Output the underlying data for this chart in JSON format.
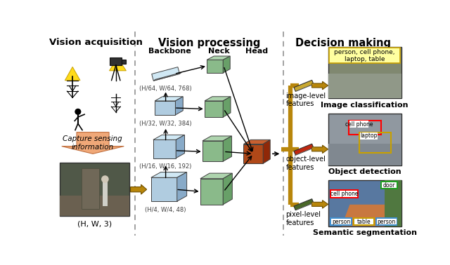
{
  "title_left": "Vision acquisition",
  "title_mid": "Vision processing",
  "title_right": "Decision making",
  "backbone_label": "Backbone",
  "neck_label": "Neck",
  "head_label": "Head",
  "backbone_dims": [
    "(H/64, W/64, 768)",
    "(H/32, W/32, 384)",
    "(H/16, W/16, 192)",
    "(H/4, W/4, 48)"
  ],
  "capture_label": "Capture sensing\ninformation",
  "hw3_label": "(H, W, 3)",
  "img_level": "image-level\nfeatures",
  "obj_level": "object-level\nfeatures",
  "pix_level": "pixel-level\nfeatures",
  "class_label": "Image classification",
  "detect_label": "Object detection",
  "seg_label": "Semantic segmentation",
  "class_text": "person, cell phone,\nlaptop, table",
  "bg_color": "#ffffff",
  "arrow_color": "#b8860b",
  "box_blue_face": "#b0cce0",
  "box_blue_top": "#d0e8f4",
  "box_blue_side": "#88aac8",
  "box_green_face": "#8aba8a",
  "box_green_top": "#aed4ae",
  "box_green_side": "#68a068",
  "head_face": "#b04818",
  "head_top": "#c86030",
  "head_side": "#902808",
  "thin_bar_gold": "#c8a830",
  "thin_bar_red": "#c02810",
  "thin_bar_dkgreen": "#4a6828",
  "divider_color": "#888888"
}
